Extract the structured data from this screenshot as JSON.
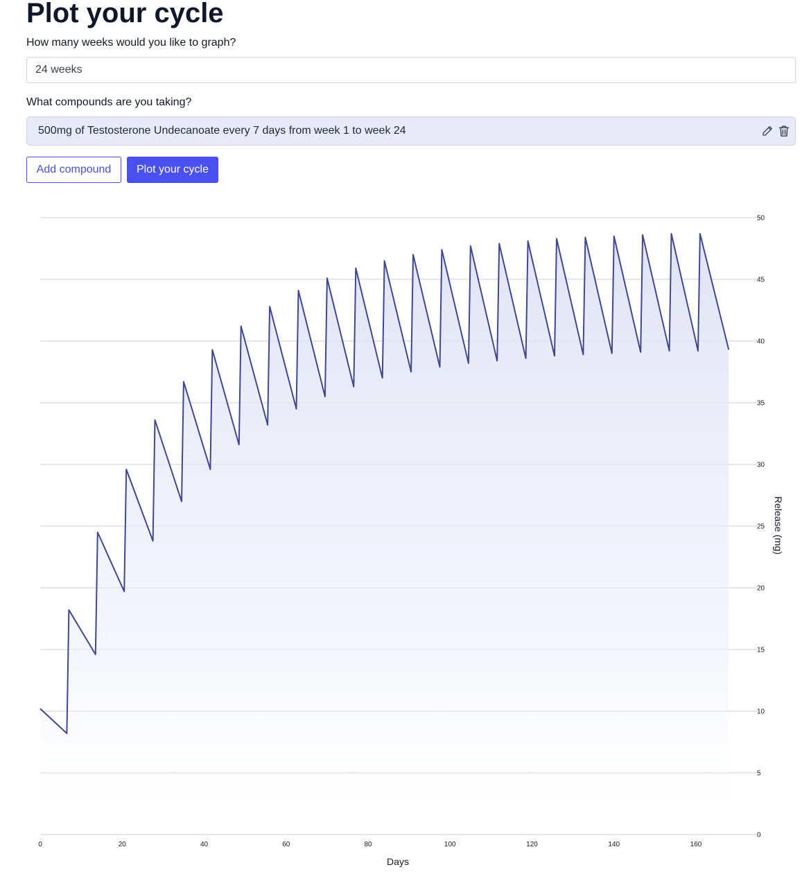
{
  "page": {
    "title": "Plot your cycle"
  },
  "weeks": {
    "label": "How many weeks would you like to graph?",
    "value": "24 weeks"
  },
  "compounds": {
    "label": "What compounds are you taking?",
    "items": [
      {
        "text": "500mg of Testosterone Undecanoate every 7 days from week 1 to week 24"
      }
    ]
  },
  "actions": {
    "add_compound": "Add compound",
    "plot": "Plot your cycle"
  },
  "icons": {
    "edit": "pencil-icon",
    "delete": "trash-icon"
  },
  "colors": {
    "accent": "#4a4ff0",
    "line": "#3f4790",
    "fill": "#dfe2f5",
    "compound_bg": "#e8eaf7"
  },
  "chart_data": {
    "type": "line",
    "xlabel": "Days",
    "ylabel": "Release (mg)",
    "xlim": [
      0,
      173
    ],
    "ylim": [
      0,
      50
    ],
    "x_ticks": [
      0,
      20,
      40,
      60,
      80,
      100,
      120,
      140,
      160
    ],
    "y_ticks": [
      0,
      5,
      10,
      15,
      20,
      25,
      30,
      35,
      40,
      45,
      50
    ],
    "grid": true,
    "y_axis_side": "right",
    "series": [
      {
        "x": [
          0,
          6.5,
          7,
          13.5,
          14,
          20.5,
          21,
          27.5,
          28,
          34.5,
          35,
          41.5,
          42,
          48.5,
          49,
          55.5,
          56,
          62.5,
          63,
          69.5,
          70,
          76.5,
          77,
          83.5,
          84,
          90.5,
          91,
          97.5,
          98,
          104.5,
          105,
          111.5,
          112,
          118.5,
          119,
          125.5,
          126,
          132.5,
          133,
          139.5,
          140,
          146.5,
          147,
          153.5,
          154,
          160.5,
          161,
          168
        ],
        "y": [
          10.2,
          8.2,
          18.2,
          14.6,
          24.5,
          19.7,
          29.6,
          23.8,
          33.6,
          27.0,
          36.7,
          29.6,
          39.3,
          31.6,
          41.2,
          33.2,
          42.8,
          34.5,
          44.1,
          35.5,
          45.1,
          36.3,
          45.9,
          37.0,
          46.5,
          37.5,
          47.0,
          37.9,
          47.4,
          38.2,
          47.7,
          38.4,
          47.9,
          38.6,
          48.1,
          38.8,
          48.3,
          38.9,
          48.4,
          39.0,
          48.5,
          39.1,
          48.6,
          39.2,
          48.7,
          39.2,
          48.7,
          39.3
        ]
      }
    ]
  }
}
